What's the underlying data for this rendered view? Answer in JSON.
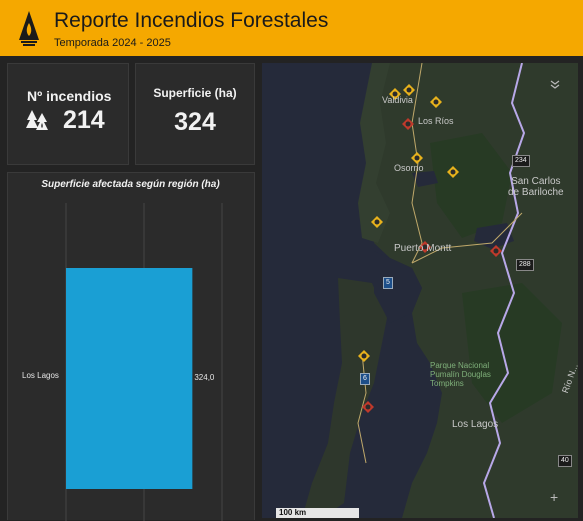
{
  "header": {
    "title": "Reporte Incendios Forestales",
    "subtitle": "Temporada 2024 - 2025",
    "logo_icon": "tree-flame-logo-icon"
  },
  "kpi_incendios": {
    "label": "Nº incendios",
    "value": "214",
    "icon": "burning-trees-icon"
  },
  "kpi_superficie": {
    "label": "Superficie (ha)",
    "value": "324"
  },
  "chart": {
    "title": "Superficie afectada según región (ha)",
    "category_label": "Los Lagos",
    "value_label": "324,0",
    "bar_color": "#1a9fd4"
  },
  "chart_data": {
    "type": "bar",
    "orientation": "horizontal",
    "title": "Superficie afectada según región (ha)",
    "categories": [
      "Los Lagos"
    ],
    "values": [
      324.0
    ],
    "xlim": [
      0,
      400
    ]
  },
  "map": {
    "labels": {
      "valdivia": "Valdivia",
      "los_rios": "Los Ríos",
      "osorno": "Osorno",
      "bariloche": "San Carlos\nde Bariloche",
      "puerto_montt": "Puerto Montt",
      "parque": "Parque Nacional\nPumalín Douglas\nTompkins",
      "los_lagos": "Los Lagos",
      "rio_negro": "Río N..."
    },
    "routes": [
      "234",
      "288",
      "5",
      "6",
      "40"
    ],
    "scale": "100 km",
    "collapse_icon": "chevrons-down-icon",
    "zoom_in_label": "+"
  },
  "colors": {
    "header_bg": "#f5a800",
    "panel_bg": "#2b2b2b",
    "fire_active": "#e8b21c",
    "fire_controlled": "#c0392b"
  }
}
